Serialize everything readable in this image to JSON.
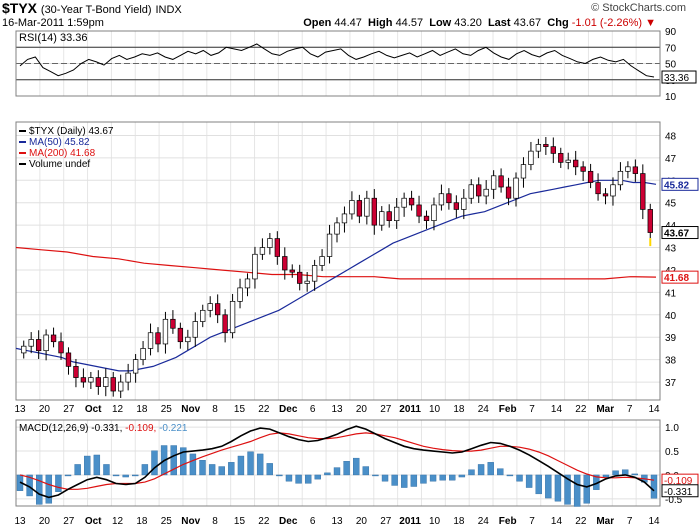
{
  "header": {
    "symbol": "$TYX",
    "name": "(30-Year T-Bond Yield)",
    "exchange": "INDX",
    "datetime": "16-Mar-2011 1:59pm",
    "brand": "© StockCharts.com",
    "open_label": "Open",
    "open": "44.47",
    "high_label": "High",
    "high": "44.57",
    "low_label": "Low",
    "low": "43.20",
    "last_label": "Last",
    "last": "43.67",
    "chg_label": "Chg",
    "chg": "-1.01 (-2.26%)",
    "chg_arrow": "▼"
  },
  "colors": {
    "up_candle": "#ffffff",
    "down_candle": "#cc0033",
    "ma50": "#1a2a9a",
    "ma200": "#dd1111",
    "macd_line": "#000000",
    "signal_line": "#dd1111",
    "histogram": "#4a8fc8",
    "last_highlight": "#ffd700"
  },
  "x_ticks": [
    "13",
    "20",
    "27",
    "Oct",
    "12",
    "18",
    "25",
    "Nov",
    "8",
    "15",
    "22",
    "Dec",
    "6",
    "13",
    "20",
    "27",
    "2011",
    "10",
    "18",
    "24",
    "Feb",
    "7",
    "14",
    "22",
    "Mar",
    "7",
    "14"
  ],
  "chart_data": [
    {
      "type": "line",
      "title": "RSI(14) 33.36",
      "legend": [
        "RSI(14) 33.36"
      ],
      "y_ticks": [
        90,
        70,
        50,
        30,
        10
      ],
      "ylim": [
        10,
        90
      ],
      "reference_lines": [
        70,
        30
      ],
      "last_value": "33.36",
      "values": [
        47,
        55,
        58,
        45,
        40,
        35,
        38,
        42,
        50,
        55,
        52,
        48,
        56,
        60,
        55,
        58,
        62,
        60,
        63,
        58,
        55,
        60,
        65,
        62,
        66,
        60,
        63,
        70,
        68,
        66,
        70,
        74,
        68,
        62,
        60,
        65,
        68,
        70,
        62,
        58,
        64,
        66,
        68,
        60,
        55,
        58,
        62,
        65,
        60,
        57,
        60,
        63,
        58,
        62,
        66,
        60,
        64,
        68,
        62,
        60,
        66,
        70,
        63,
        58,
        55,
        62,
        66,
        61,
        58,
        63,
        66,
        60,
        56,
        52,
        50,
        55,
        58,
        54,
        52,
        55,
        47,
        41,
        35,
        33.36
      ]
    },
    {
      "type": "candlestick",
      "title": "$TYX (Daily) 43.67",
      "legend": [
        "$TYX (Daily) 43.67",
        "MA(50) 45.82",
        "MA(200) 41.68",
        "Volume undef"
      ],
      "y_ticks": [
        37,
        38,
        39,
        40,
        41,
        42,
        43,
        44,
        45,
        46,
        47,
        48
      ],
      "ylim": [
        36.2,
        48.6
      ],
      "last_value": "43.67",
      "ma50_value": "45.82",
      "ma200_value": "41.68",
      "close": [
        38.6,
        38.9,
        38.4,
        39.1,
        38.8,
        38.3,
        37.7,
        37.2,
        37.0,
        37.2,
        36.8,
        37.2,
        36.6,
        37.0,
        37.4,
        38.0,
        38.5,
        39.2,
        38.7,
        39.8,
        39.4,
        38.8,
        39.0,
        39.7,
        40.2,
        40.5,
        40.0,
        39.2,
        40.6,
        41.2,
        41.6,
        42.7,
        43.0,
        43.4,
        42.6,
        42.0,
        41.9,
        41.4,
        41.5,
        42.2,
        42.6,
        43.6,
        44.1,
        44.5,
        45.1,
        44.4,
        45.2,
        44.0,
        44.6,
        44.2,
        44.8,
        45.2,
        44.9,
        44.4,
        44.2,
        44.9,
        45.4,
        45.0,
        44.7,
        45.2,
        45.8,
        45.3,
        45.6,
        46.2,
        45.7,
        45.2,
        46.1,
        46.7,
        47.3,
        47.6,
        47.5,
        47.2,
        46.8,
        46.9,
        46.6,
        46.4,
        45.9,
        45.4,
        45.3,
        45.8,
        46.4,
        46.6,
        46.3,
        44.7,
        43.67
      ],
      "ma50": [
        38.5,
        38.4,
        38.3,
        38.2,
        38.1,
        37.9,
        37.8,
        37.7,
        37.6,
        37.5,
        37.5,
        37.6,
        37.7,
        37.9,
        38.1,
        38.4,
        38.7,
        39.0,
        39.2,
        39.4,
        39.6,
        39.8,
        40.0,
        40.2,
        40.5,
        40.8,
        41.1,
        41.4,
        41.7,
        42.0,
        42.3,
        42.6,
        42.9,
        43.2,
        43.4,
        43.6,
        43.8,
        44.0,
        44.2,
        44.4,
        44.5,
        44.6,
        44.8,
        45.0,
        45.2,
        45.4,
        45.5,
        45.6,
        45.7,
        45.8,
        45.9,
        46.0,
        46.0,
        46.0,
        45.9,
        45.9,
        45.82
      ],
      "ma200": [
        43.0,
        42.9,
        42.8,
        42.6,
        42.5,
        42.3,
        42.2,
        42.1,
        42.0,
        41.9,
        41.8,
        41.8,
        41.7,
        41.7,
        41.7,
        41.6,
        41.6,
        41.6,
        41.6,
        41.6,
        41.6,
        41.6,
        41.6,
        41.6,
        41.7,
        41.68
      ]
    },
    {
      "type": "line",
      "title": "MACD(12,26,9) -0.331, -0.109, -0.221",
      "legend_label": "MACD(12,26,9)",
      "legend_macd": "-0.331",
      "legend_signal": "-0.109",
      "legend_hist": "-0.221",
      "y_ticks": [
        1.0,
        0.5,
        0.0,
        -0.5
      ],
      "ylim": [
        -0.65,
        1.15
      ],
      "tag_signal": "-0.109",
      "tag_macd": "-0.331",
      "macd": [
        -0.15,
        -0.25,
        -0.4,
        -0.47,
        -0.42,
        -0.3,
        -0.2,
        -0.1,
        -0.05,
        -0.1,
        -0.18,
        -0.2,
        -0.18,
        -0.05,
        0.15,
        0.3,
        0.4,
        0.48,
        0.5,
        0.52,
        0.55,
        0.6,
        0.7,
        0.82,
        0.92,
        0.98,
        0.96,
        0.88,
        0.8,
        0.74,
        0.7,
        0.72,
        0.78,
        0.85,
        0.95,
        1.02,
        0.96,
        0.86,
        0.76,
        0.68,
        0.6,
        0.55,
        0.52,
        0.5,
        0.48,
        0.46,
        0.48,
        0.55,
        0.62,
        0.68,
        0.66,
        0.6,
        0.52,
        0.42,
        0.3,
        0.18,
        0.05,
        -0.08,
        -0.2,
        -0.25,
        -0.18,
        -0.08,
        -0.02,
        0.0,
        -0.05,
        -0.15,
        -0.331
      ],
      "signal": [
        0.0,
        -0.05,
        -0.12,
        -0.2,
        -0.26,
        -0.3,
        -0.3,
        -0.28,
        -0.24,
        -0.2,
        -0.18,
        -0.18,
        -0.18,
        -0.15,
        -0.08,
        0.02,
        0.12,
        0.22,
        0.3,
        0.38,
        0.45,
        0.52,
        0.58,
        0.64,
        0.7,
        0.78,
        0.85,
        0.88,
        0.86,
        0.82,
        0.78,
        0.76,
        0.76,
        0.78,
        0.82,
        0.86,
        0.88,
        0.86,
        0.82,
        0.78,
        0.72,
        0.66,
        0.6,
        0.56,
        0.53,
        0.51,
        0.5,
        0.5,
        0.52,
        0.56,
        0.6,
        0.6,
        0.58,
        0.54,
        0.48,
        0.4,
        0.3,
        0.2,
        0.1,
        0.02,
        -0.04,
        -0.06,
        -0.06,
        -0.05,
        -0.06,
        -0.08,
        -0.109
      ]
    }
  ]
}
